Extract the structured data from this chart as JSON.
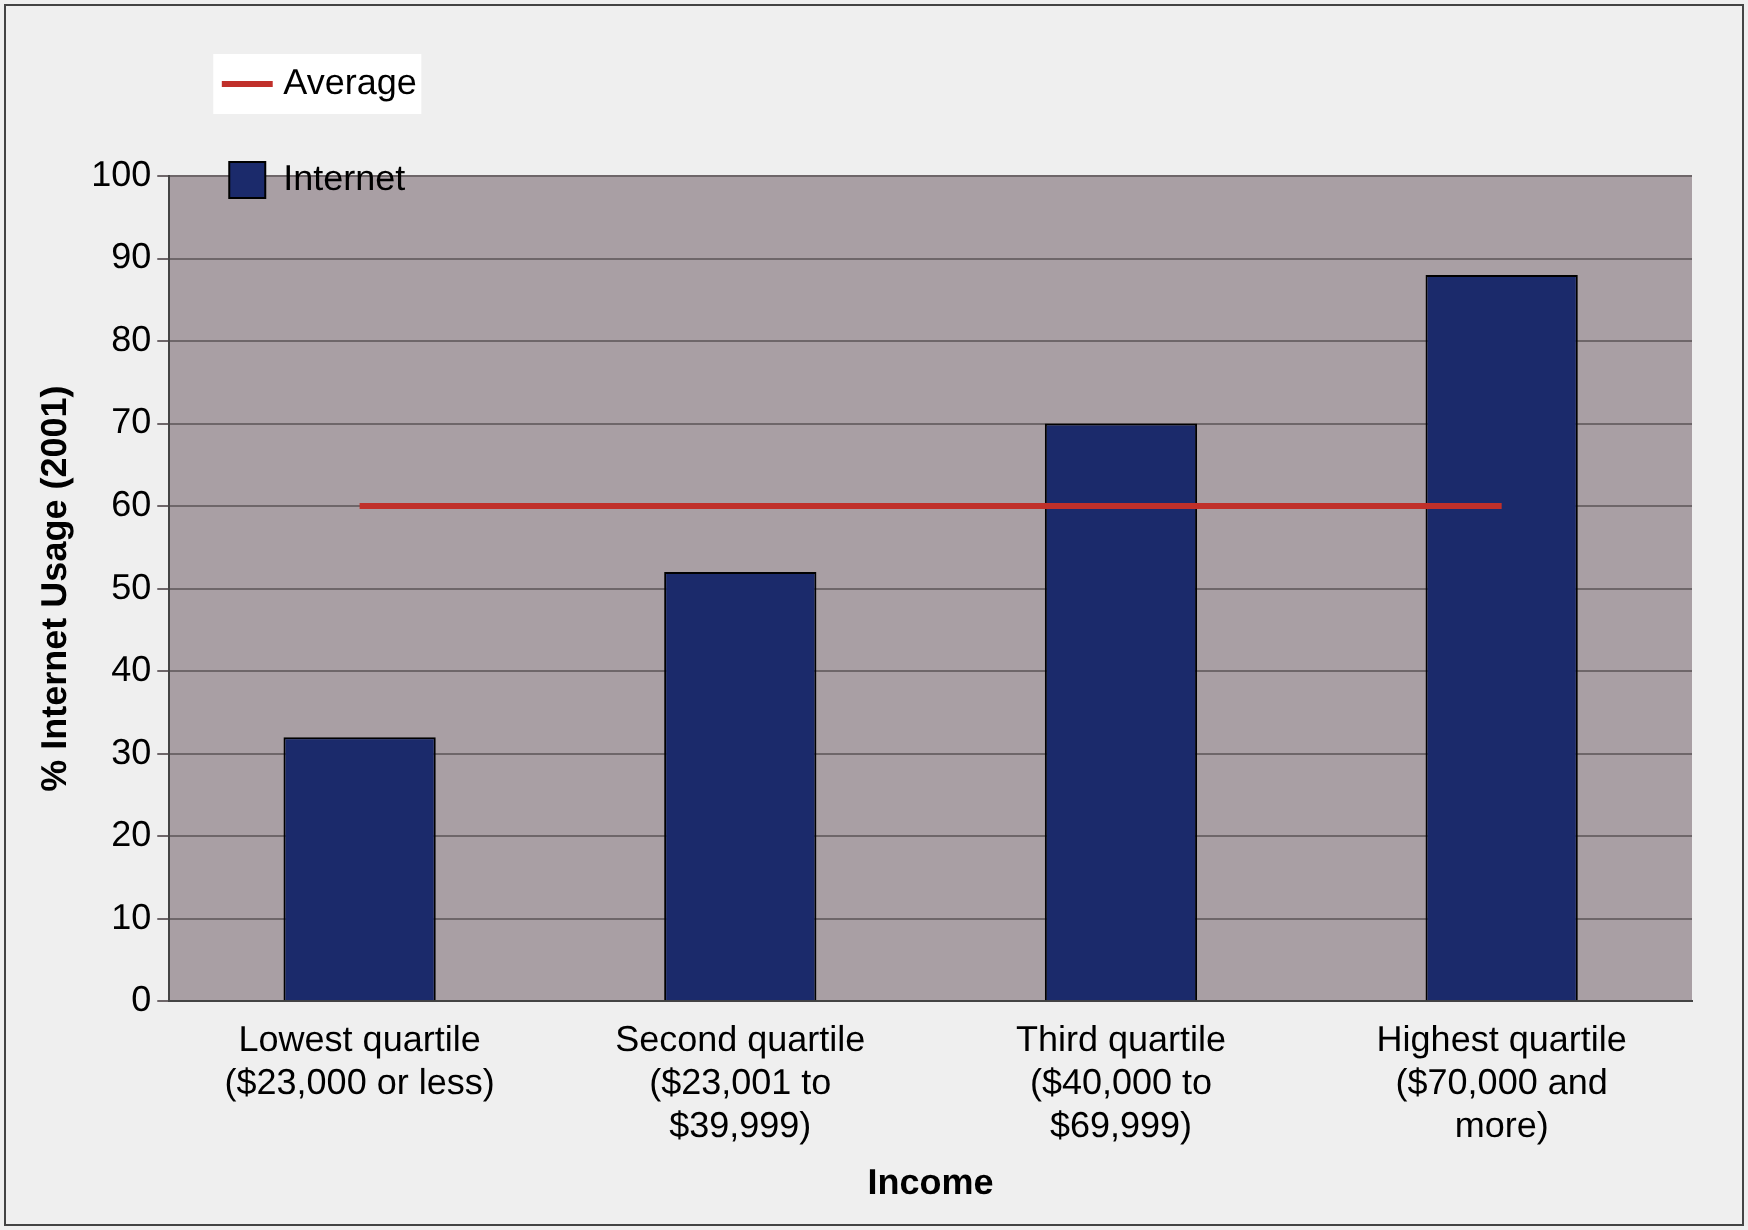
{
  "chart_data": {
    "type": "bar",
    "xlabel": "Income",
    "ylabel": "% Internet Usage (2001)",
    "categories": [
      "Lowest quartile ($23,000 or less)",
      "Second quartile ($23,001 to $39,999)",
      "Third quartile ($40,000 to $69,999)",
      "Highest quartile ($70,000 and more)"
    ],
    "series": [
      {
        "name": "Internet",
        "color": "#1b2a6b",
        "values": [
          32,
          52,
          70,
          88
        ]
      },
      {
        "name": "Average",
        "type": "line",
        "color": "#c0302a",
        "values": [
          60,
          60,
          60,
          60
        ]
      }
    ],
    "ylim": [
      0,
      100
    ],
    "yticks": [
      0,
      10,
      20,
      30,
      40,
      50,
      60,
      70,
      80,
      90,
      100
    ],
    "grid": "y",
    "legend": "top left"
  }
}
